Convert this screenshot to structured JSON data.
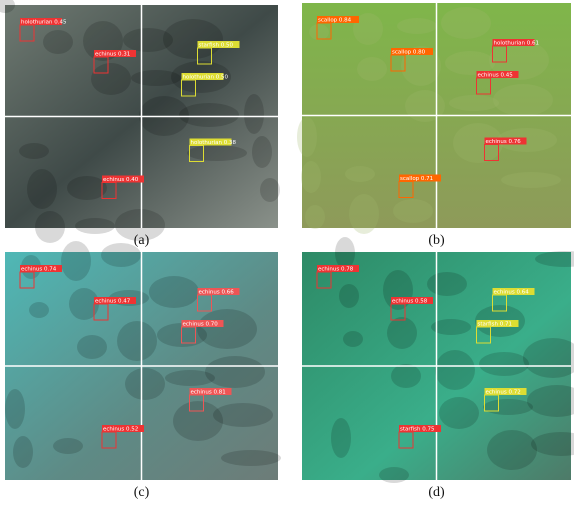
{
  "panels": [
    {
      "caption": "(a)",
      "detections": [
        {
          "label": "holothurian 0.45"
        },
        {
          "label": "starfish 0.50"
        },
        {
          "label": "echinus 0.40"
        },
        {
          "label": "holothurian 0.38"
        },
        {
          "label": "echinus 0.31"
        },
        {
          "label": "holothurian 0.50"
        }
      ]
    },
    {
      "caption": "(b)",
      "detections": [
        {
          "label": "scallop 0.84"
        },
        {
          "label": "holothurian 0.61"
        },
        {
          "label": "scallop 0.71"
        },
        {
          "label": "echinus 0.76"
        },
        {
          "label": "scallop 0.80"
        },
        {
          "label": "echinus 0.45"
        }
      ]
    },
    {
      "caption": "(c)",
      "detections": [
        {
          "label": "echinus 0.74"
        },
        {
          "label": "echinus 0.66"
        },
        {
          "label": "echinus 0.52"
        },
        {
          "label": "echinus 0.81"
        },
        {
          "label": "echinus 0.47"
        },
        {
          "label": "echinus 0.70"
        }
      ]
    },
    {
      "caption": "(d)",
      "detections": [
        {
          "label": "echinus 0.78"
        },
        {
          "label": "echinus 0.64"
        },
        {
          "label": "starfish 0.75"
        },
        {
          "label": "echinus 0.72"
        },
        {
          "label": "echinus 0.58"
        },
        {
          "label": "starfish 0.71"
        }
      ]
    }
  ]
}
